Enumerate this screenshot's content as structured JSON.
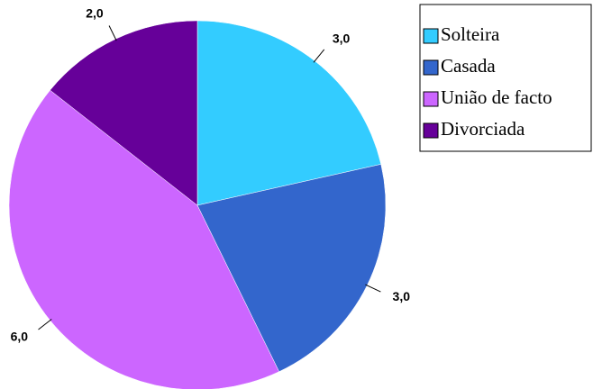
{
  "chart_data": {
    "type": "pie",
    "categories": [
      "Solteira",
      "Casada",
      "União de facto",
      "Divorciada"
    ],
    "values": [
      3,
      3,
      6,
      2
    ],
    "value_labels": [
      "3,0",
      "3,0",
      "6,0",
      "2,0"
    ],
    "colors": [
      "#33ccff",
      "#3366cc",
      "#cc66ff",
      "#660099"
    ],
    "legend": "right"
  }
}
